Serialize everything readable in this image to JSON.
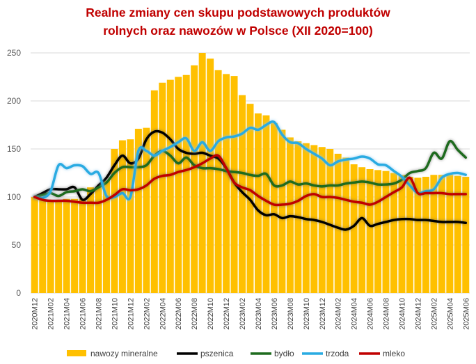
{
  "chart_data": {
    "type": "bar+line",
    "title_line1": "Realne zmiany cen skupu podstawowych produktów",
    "title_line2": "rolnych oraz nawozów w Polsce (XII 2020=100)",
    "ylim": [
      0,
      250
    ],
    "yticks": [
      "0",
      "50",
      "100",
      "150",
      "200",
      "250"
    ],
    "grid": true,
    "legend_position": "bottom",
    "x": [
      "2020M12",
      "2021M01",
      "2021M02",
      "2021M03",
      "2021M04",
      "2021M05",
      "2021M06",
      "2021M07",
      "2021M08",
      "2021M09",
      "2021M10",
      "2021M11",
      "2021M12",
      "2022M01",
      "2022M02",
      "2022M03",
      "2022M04",
      "2022M05",
      "2022M06",
      "2022M07",
      "2022M08",
      "2022M09",
      "2022M10",
      "2022M11",
      "2022M12",
      "2023M01",
      "2023M02",
      "2023M03",
      "2023M04",
      "2023M05",
      "2023M06",
      "2023M07",
      "2023M08",
      "2023M09",
      "2023M10",
      "2023M11",
      "2023M12",
      "2024M01",
      "2024M02",
      "2024M03",
      "2024M04",
      "2024M05",
      "2024M06",
      "2024M07",
      "2024M08",
      "2024M09",
      "2024M10",
      "2024M11",
      "2024M12",
      "2025M01",
      "2025M02",
      "2025M03",
      "2025M04",
      "2025M05",
      "2025M06"
    ],
    "xticks": [
      "2020M12",
      "2021M02",
      "2021M04",
      "2021M06",
      "2021M08",
      "2021M10",
      "2021M12",
      "2022M02",
      "2022M04",
      "2022M06",
      "2022M08",
      "2022M10",
      "2022M12",
      "2023M02",
      "2023M04",
      "2023M06",
      "2023M08",
      "2023M10",
      "2023M12",
      "2024M02",
      "2024M04",
      "2024M06",
      "2024M08",
      "2024M10",
      "2024M12",
      "2025M02",
      "2025M04",
      "2025M06"
    ],
    "series": [
      {
        "name": "nawozy mineralne",
        "kind": "bar",
        "color": "#ffc000",
        "values": [
          100,
          97,
          97,
          97,
          98,
          98,
          98,
          110,
          110,
          117,
          150,
          159,
          160,
          171,
          172,
          211,
          219,
          222,
          225,
          227,
          237,
          250,
          244,
          232,
          228,
          226,
          206,
          197,
          187,
          185,
          177,
          170,
          162,
          158,
          156,
          154,
          152,
          150,
          145,
          141,
          134,
          131,
          129,
          128,
          127,
          125,
          123,
          121,
          120,
          121,
          123,
          123,
          123,
          122,
          121
        ]
      },
      {
        "name": "pszenica",
        "kind": "line",
        "color": "#000000",
        "values": [
          100,
          104,
          108,
          108,
          108,
          110,
          97,
          103,
          112,
          120,
          133,
          143,
          135,
          140,
          160,
          168,
          167,
          160,
          150,
          146,
          145,
          146,
          143,
          140,
          130,
          115,
          105,
          97,
          86,
          81,
          82,
          78,
          80,
          79,
          77,
          76,
          74,
          71,
          68,
          66,
          70,
          78,
          70,
          72,
          74,
          76,
          77,
          77,
          76,
          76,
          75,
          74,
          74,
          74,
          73
        ]
      },
      {
        "name": "bydło",
        "kind": "line",
        "color": "#1e6b1e",
        "values": [
          100,
          102,
          104,
          101,
          105,
          106,
          108,
          106,
          110,
          115,
          125,
          131,
          131,
          131,
          133,
          143,
          148,
          143,
          135,
          141,
          133,
          130,
          130,
          129,
          127,
          126,
          125,
          123,
          122,
          124,
          112,
          112,
          116,
          113,
          114,
          112,
          111,
          112,
          112,
          114,
          115,
          116,
          115,
          113,
          113,
          114,
          118,
          125,
          127,
          130,
          146,
          140,
          158,
          149,
          141
        ]
      },
      {
        "name": "trzoda",
        "kind": "line",
        "color": "#29abe2",
        "values": [
          100,
          99,
          106,
          133,
          130,
          133,
          132,
          124,
          125,
          101,
          100,
          104,
          100,
          148,
          148,
          143,
          148,
          152,
          157,
          161,
          148,
          157,
          148,
          158,
          162,
          163,
          166,
          172,
          170,
          175,
          178,
          165,
          157,
          156,
          150,
          145,
          140,
          133,
          137,
          139,
          140,
          142,
          140,
          134,
          133,
          127,
          121,
          112,
          104,
          106,
          108,
          120,
          124,
          125,
          123
        ]
      },
      {
        "name": "mleko",
        "kind": "line",
        "color": "#c00000",
        "values": [
          100,
          97,
          96,
          96,
          96,
          95,
          94,
          94,
          94,
          97,
          102,
          108,
          107,
          108,
          112,
          119,
          122,
          123,
          126,
          128,
          131,
          135,
          140,
          143,
          130,
          115,
          110,
          107,
          101,
          96,
          92,
          92,
          93,
          96,
          101,
          103,
          100,
          100,
          99,
          97,
          95,
          94,
          92,
          95,
          100,
          105,
          110,
          120,
          104,
          104,
          104,
          104,
          103,
          103,
          103
        ]
      }
    ]
  }
}
